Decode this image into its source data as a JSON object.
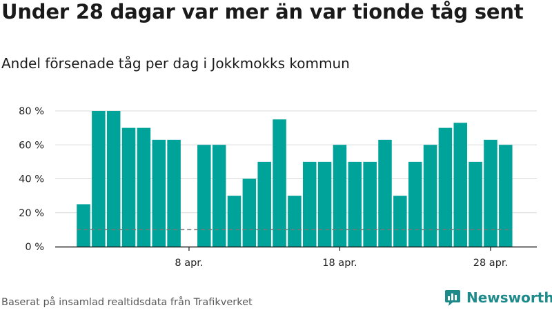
{
  "title": "Under 28 dagar var mer än var tionde tåg sent",
  "subtitle": "Andel försenade tåg per dag i Jokkmokks kommun",
  "footer": "Baserat på insamlad realtidsdata från Trafikverket",
  "brand": {
    "name": "Newsworthy",
    "icon": "newsworthy-logo-icon"
  },
  "colors": {
    "bar": "#00a39a",
    "grid": "#d9d9d9",
    "axis": "#1a1a1a",
    "reference": "#777777",
    "brand": "#1f8a8a"
  },
  "chart_data": {
    "type": "bar",
    "x_type": "date",
    "dates": [
      "2019-04-01",
      "2019-04-02",
      "2019-04-03",
      "2019-04-04",
      "2019-04-05",
      "2019-04-06",
      "2019-04-07",
      "2019-04-08",
      "2019-04-09",
      "2019-04-10",
      "2019-04-11",
      "2019-04-12",
      "2019-04-13",
      "2019-04-14",
      "2019-04-15",
      "2019-04-16",
      "2019-04-17",
      "2019-04-18",
      "2019-04-19",
      "2019-04-20",
      "2019-04-21",
      "2019-04-22",
      "2019-04-23",
      "2019-04-24",
      "2019-04-25",
      "2019-04-26",
      "2019-04-27",
      "2019-04-28",
      "2019-04-29",
      "2019-04-30"
    ],
    "values": [
      25,
      80,
      80,
      70,
      70,
      63,
      63,
      null,
      60,
      60,
      30,
      40,
      50,
      75,
      30,
      50,
      50,
      60,
      50,
      50,
      63,
      30,
      50,
      60,
      70,
      73,
      50,
      63,
      60,
      null
    ],
    "reference_line": {
      "value": 10,
      "style": "dashed"
    },
    "y_ticks": [
      0,
      20,
      40,
      60,
      80
    ],
    "y_tick_labels": [
      "0 %",
      "20 %",
      "40 %",
      "60 %",
      "80 %"
    ],
    "x_ticks": [
      {
        "date": "2019-04-08",
        "label": "8 apr."
      },
      {
        "date": "2019-04-18",
        "label": "18 apr."
      },
      {
        "date": "2019-04-28",
        "label": "28 apr."
      }
    ],
    "ylim": [
      0,
      80
    ],
    "grid": true
  }
}
